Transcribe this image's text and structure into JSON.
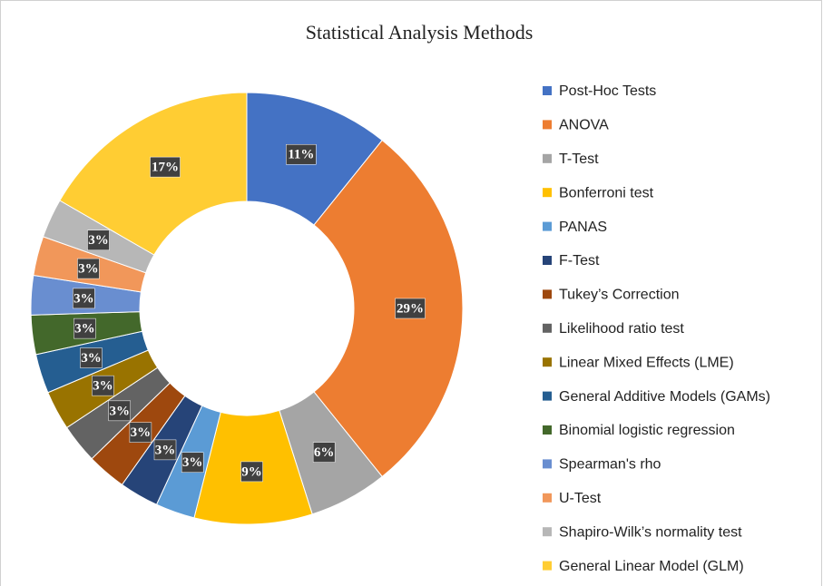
{
  "chart_data": {
    "type": "donut",
    "title": "Statistical  Analysis Methods",
    "categories": [
      "Post-Hoc Tests",
      "ANOVA",
      "T-Test",
      "Bonferroni test",
      "PANAS",
      "F-Test",
      "Tukey’s Correction",
      "Likelihood ratio test",
      "Linear Mixed Effects (LME)",
      "General Additive Models (GAMs)",
      "Binomial logistic regression",
      "Spearman's rho",
      "U-Test",
      "Shapiro-Wilk’s normality test",
      "General Linear Model (GLM)"
    ],
    "values": [
      11,
      29,
      6,
      9,
      3,
      3,
      3,
      3,
      3,
      3,
      3,
      3,
      3,
      3,
      17
    ],
    "value_labels": [
      "11%",
      "29%",
      "6%",
      "9%",
      "3%",
      "3%",
      "3%",
      "3%",
      "3%",
      "3%",
      "3%",
      "3%",
      "3%",
      "3%",
      "17%"
    ],
    "colors": [
      "#4472c4",
      "#ed7d31",
      "#a5a5a5",
      "#ffc000",
      "#5b9bd5",
      "#264478",
      "#9e480e",
      "#636363",
      "#997300",
      "#255e91",
      "#43682b",
      "#698ed0",
      "#f1975a",
      "#b7b7b7",
      "#ffcd33"
    ],
    "legend": "right"
  }
}
